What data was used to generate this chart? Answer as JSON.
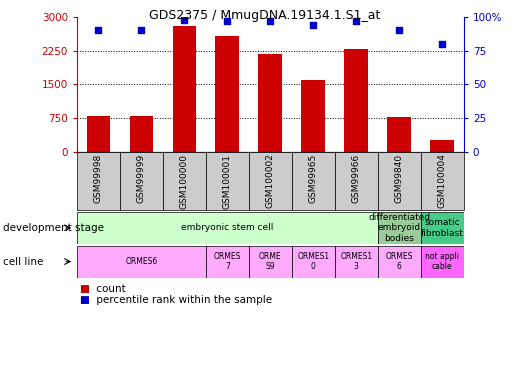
{
  "title": "GDS2375 / MmugDNA.19134.1.S1_at",
  "samples": [
    "GSM99998",
    "GSM99999",
    "GSM100000",
    "GSM100001",
    "GSM100002",
    "GSM99965",
    "GSM99966",
    "GSM99840",
    "GSM100004"
  ],
  "counts": [
    800,
    800,
    2800,
    2580,
    2180,
    1590,
    2280,
    780,
    270
  ],
  "percentiles": [
    90,
    90,
    98,
    97,
    97,
    94,
    97,
    90,
    80
  ],
  "ylim_left": [
    0,
    3000
  ],
  "ylim_right": [
    0,
    100
  ],
  "yticks_left": [
    0,
    750,
    1500,
    2250,
    3000
  ],
  "yticks_right": [
    0,
    25,
    50,
    75,
    100
  ],
  "bar_color": "#cc0000",
  "dot_color": "#0000cc",
  "grid_color": "#000000",
  "tick_color_left": "#cc0000",
  "tick_color_right": "#0000cc",
  "dev_stages": [
    {
      "label": "embryonic stem cell",
      "start": 0,
      "end": 7,
      "color": "#ccffcc"
    },
    {
      "label": "differentiated\nembryoid\nbodies",
      "start": 7,
      "end": 8,
      "color": "#99cc99"
    },
    {
      "label": "somatic\nfibroblast",
      "start": 8,
      "end": 9,
      "color": "#44cc88"
    }
  ],
  "cell_lines": [
    {
      "label": "ORMES6",
      "start": 0,
      "end": 3,
      "color": "#ffaaff"
    },
    {
      "label": "ORMES\n7",
      "start": 3,
      "end": 4,
      "color": "#ffaaff"
    },
    {
      "label": "ORME\nS9",
      "start": 4,
      "end": 5,
      "color": "#ffaaff"
    },
    {
      "label": "ORMES1\n0",
      "start": 5,
      "end": 6,
      "color": "#ffaaff"
    },
    {
      "label": "ORMES1\n3",
      "start": 6,
      "end": 7,
      "color": "#ffaaff"
    },
    {
      "label": "ORMES\n6",
      "start": 7,
      "end": 8,
      "color": "#ffaaff"
    },
    {
      "label": "not appli\ncable",
      "start": 8,
      "end": 9,
      "color": "#ff66ff"
    }
  ],
  "sample_box_color": "#cccccc",
  "legend_count_color": "#cc0000",
  "legend_dot_color": "#0000cc"
}
